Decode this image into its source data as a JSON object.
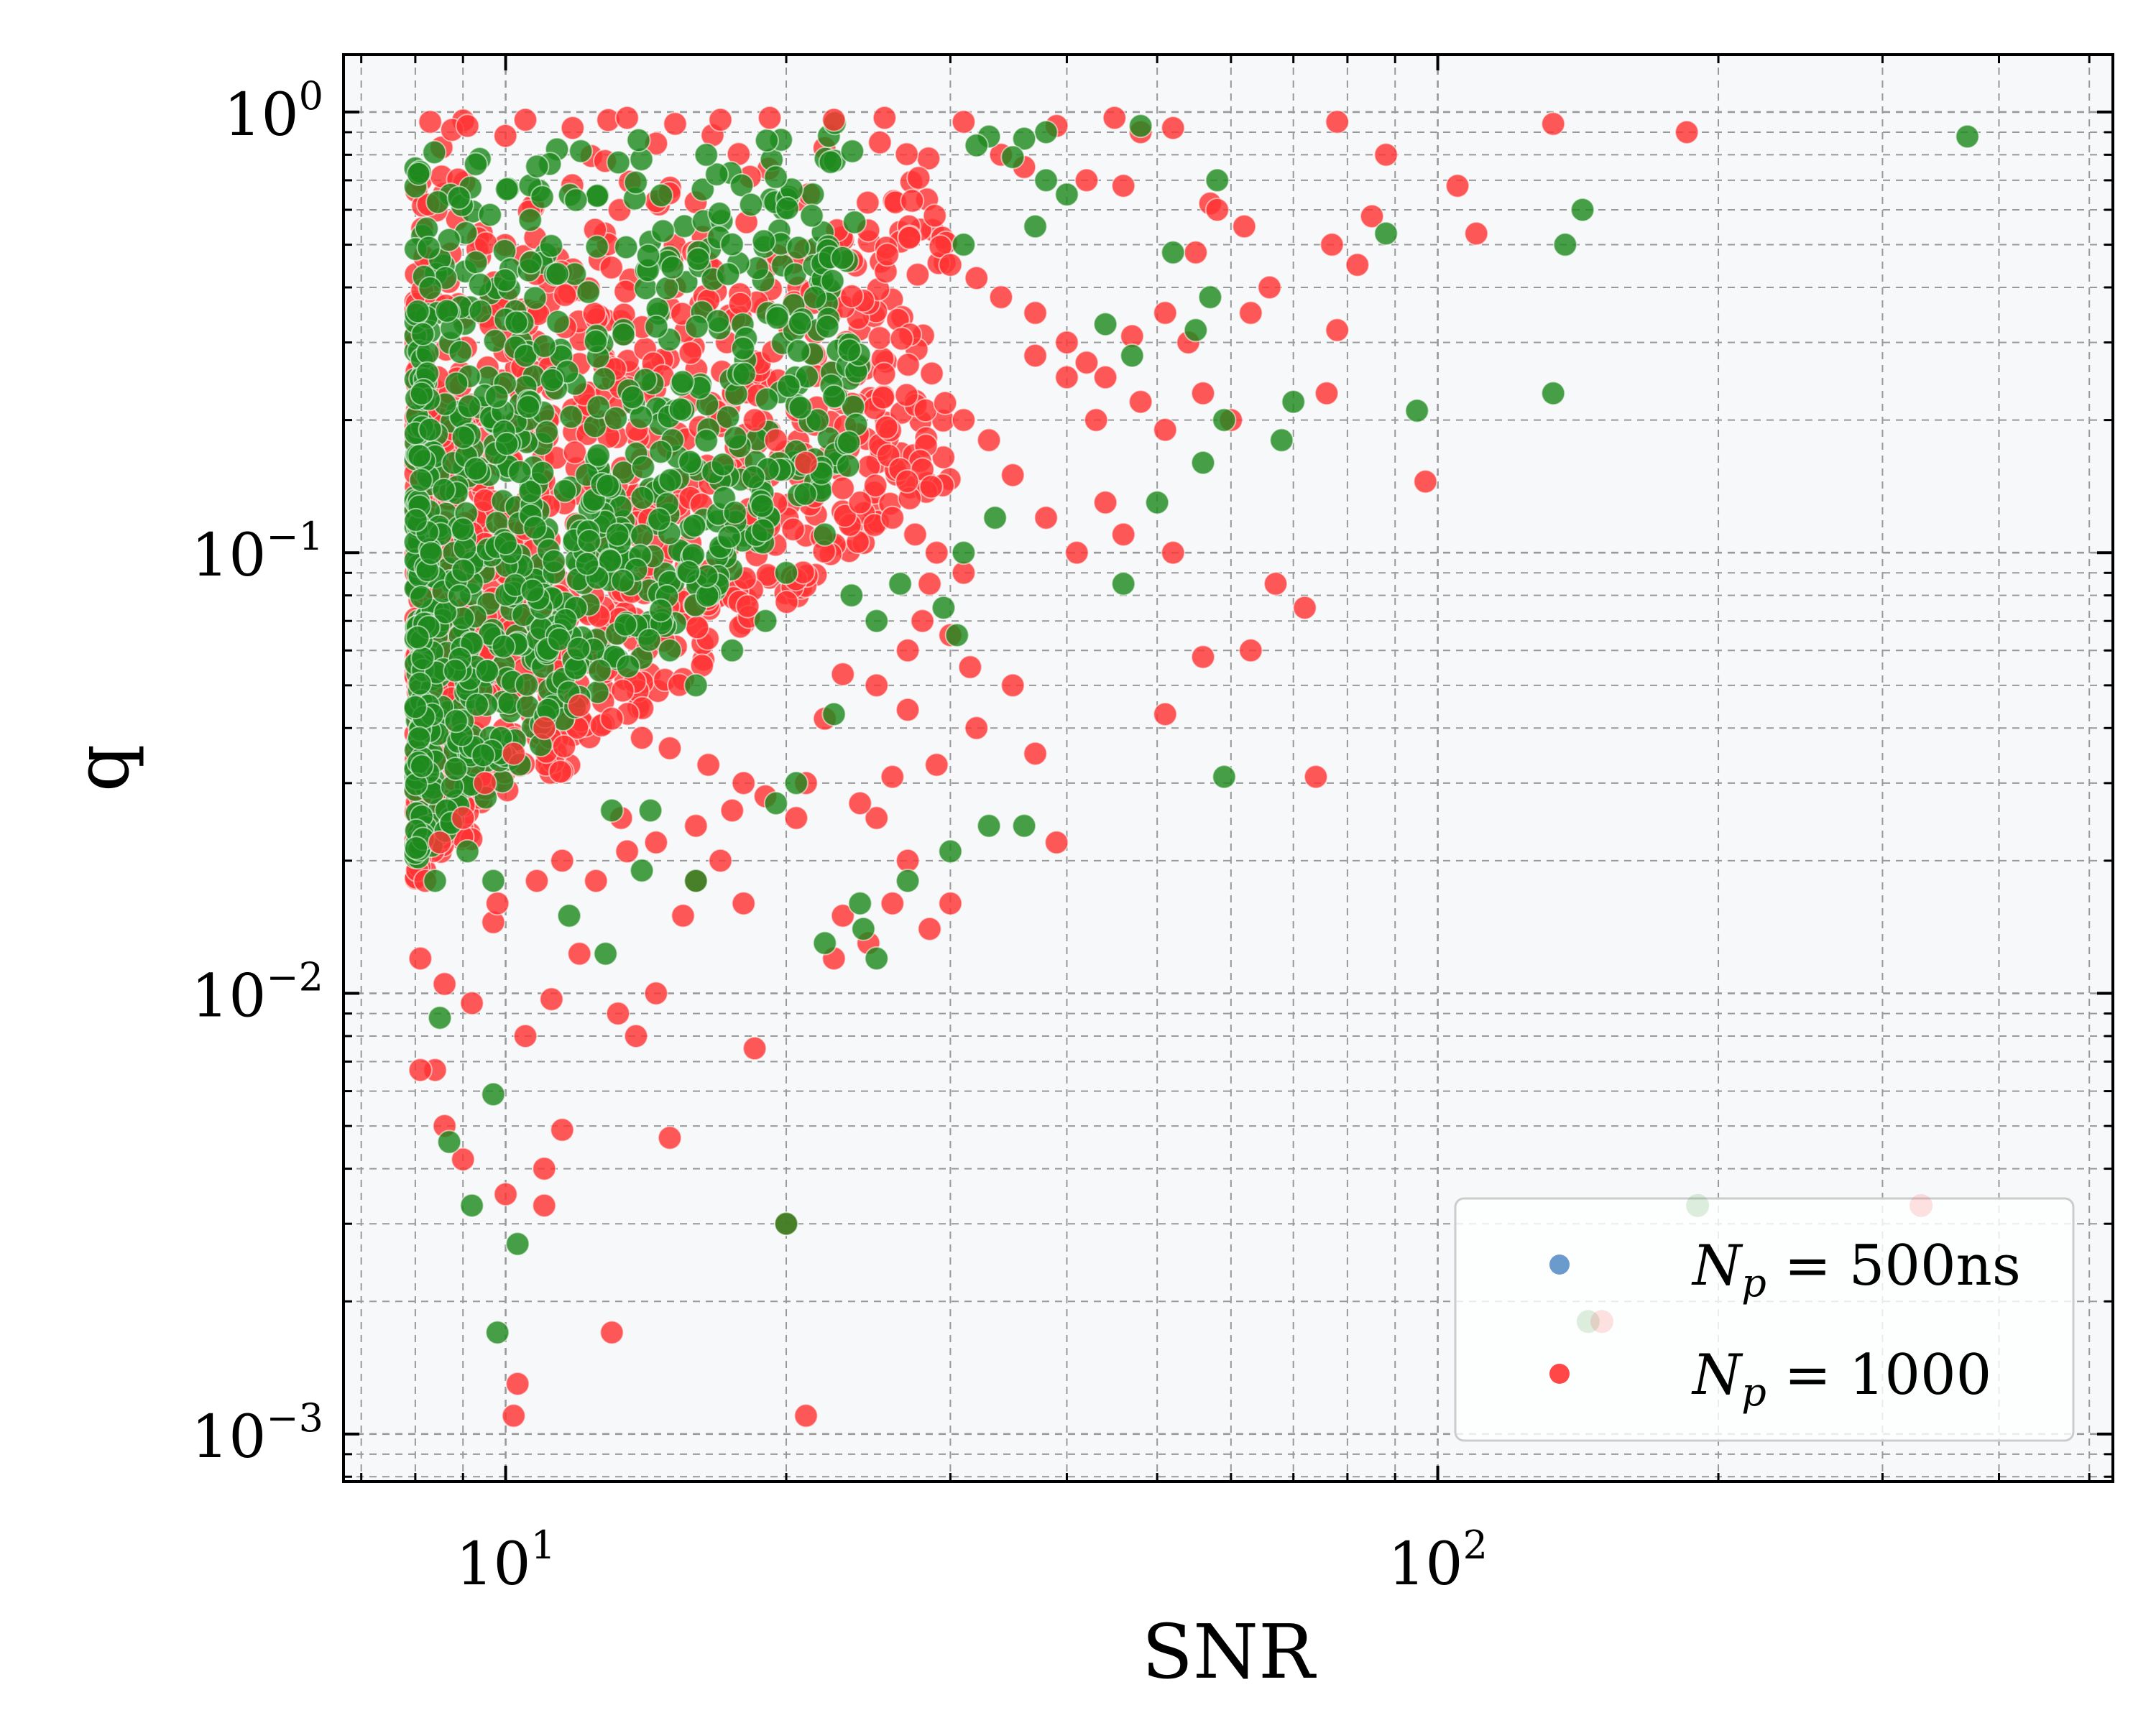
{
  "chart_data": {
    "type": "scatter",
    "xlabel": "SNR",
    "ylabel": "q",
    "xscale": "log",
    "yscale": "log",
    "xlim": [
      6.7,
      530
    ],
    "ylim": [
      0.00078,
      1.35
    ],
    "xticks": [
      {
        "base": "10",
        "exp": "1",
        "value": 10
      },
      {
        "base": "10",
        "exp": "2",
        "value": 100
      }
    ],
    "yticks": [
      {
        "base": "10",
        "exp": "0",
        "value": 1
      },
      {
        "base": "10",
        "exp": "−1",
        "value": 0.1
      },
      {
        "base": "10",
        "exp": "−2",
        "value": 0.01
      },
      {
        "base": "10",
        "exp": "−3",
        "value": 0.001
      }
    ],
    "grid": true,
    "legend_position": "lower-right",
    "colors": {
      "series_blue": "#5b8fc7",
      "series_red": "#ff3333",
      "series_green": "#1f8a1f",
      "plot_background": "#f6f8fa",
      "grid": "#999999"
    },
    "legend": [
      {
        "symbol": "N",
        "subscript": "p",
        "rest": " = 500",
        "unit": "ns",
        "color": "#5b8fc7"
      },
      {
        "symbol": "N",
        "subscript": "p",
        "rest": " = 1000",
        "unit": "",
        "color": "#ff3333"
      }
    ],
    "series": [
      {
        "color": "#5b8fc7",
        "points": []
      },
      {
        "color": "#ff3333",
        "points": [
          [
            8.3,
            0.95
          ],
          [
            9.1,
            0.93
          ],
          [
            10.5,
            0.96
          ],
          [
            11.8,
            0.92
          ],
          [
            13.5,
            0.97
          ],
          [
            15.2,
            0.94
          ],
          [
            17.0,
            0.96
          ],
          [
            19.2,
            0.97
          ],
          [
            22.5,
            0.96
          ],
          [
            25.5,
            0.97
          ],
          [
            31.0,
            0.95
          ],
          [
            39.0,
            0.93
          ],
          [
            45.0,
            0.97
          ],
          [
            48.0,
            0.9
          ],
          [
            52.0,
            0.92
          ],
          [
            78.0,
            0.95
          ],
          [
            133.0,
            0.94
          ],
          [
            185.0,
            0.9
          ],
          [
            34.0,
            0.8
          ],
          [
            36.0,
            0.75
          ],
          [
            42.0,
            0.7
          ],
          [
            46.0,
            0.68
          ],
          [
            57.0,
            0.62
          ],
          [
            58.0,
            0.6
          ],
          [
            85.0,
            0.58
          ],
          [
            88.0,
            0.8
          ],
          [
            105.0,
            0.68
          ],
          [
            110.0,
            0.53
          ],
          [
            62.0,
            0.55
          ],
          [
            55.0,
            0.48
          ],
          [
            77.0,
            0.5
          ],
          [
            82.0,
            0.45
          ],
          [
            66.0,
            0.4
          ],
          [
            78.0,
            0.32
          ],
          [
            63.0,
            0.35
          ],
          [
            30.0,
            0.45
          ],
          [
            32.0,
            0.42
          ],
          [
            34.0,
            0.38
          ],
          [
            37.0,
            0.35
          ],
          [
            40.0,
            0.3
          ],
          [
            42.0,
            0.27
          ],
          [
            44.0,
            0.25
          ],
          [
            48.0,
            0.22
          ],
          [
            51.0,
            0.19
          ],
          [
            56.0,
            0.23
          ],
          [
            60.0,
            0.2
          ],
          [
            54.0,
            0.3
          ],
          [
            51.0,
            0.35
          ],
          [
            47.0,
            0.31
          ],
          [
            43.0,
            0.2
          ],
          [
            40.0,
            0.25
          ],
          [
            37.0,
            0.28
          ],
          [
            31.0,
            0.2
          ],
          [
            33.0,
            0.18
          ],
          [
            35.0,
            0.15
          ],
          [
            38.0,
            0.12
          ],
          [
            41.0,
            0.1
          ],
          [
            44.0,
            0.13
          ],
          [
            46.0,
            0.11
          ],
          [
            52.0,
            0.1
          ],
          [
            67.0,
            0.085
          ],
          [
            76.0,
            0.23
          ],
          [
            97.0,
            0.145
          ],
          [
            72.0,
            0.075
          ],
          [
            63.0,
            0.06
          ],
          [
            56.0,
            0.058
          ],
          [
            51.0,
            0.043
          ],
          [
            74.0,
            0.031
          ],
          [
            35.0,
            0.05
          ],
          [
            37.0,
            0.035
          ],
          [
            32.0,
            0.04
          ],
          [
            29.0,
            0.033
          ],
          [
            27.0,
            0.044
          ],
          [
            25.0,
            0.05
          ],
          [
            23.0,
            0.053
          ],
          [
            22.0,
            0.042
          ],
          [
            21.0,
            0.03
          ],
          [
            20.5,
            0.025
          ],
          [
            25.0,
            0.025
          ],
          [
            27.0,
            0.02
          ],
          [
            24.0,
            0.027
          ],
          [
            26.0,
            0.031
          ],
          [
            39.0,
            0.022
          ],
          [
            23.0,
            0.015
          ],
          [
            24.5,
            0.013
          ],
          [
            26.0,
            0.016
          ],
          [
            28.5,
            0.014
          ],
          [
            30.0,
            0.016
          ],
          [
            22.5,
            0.012
          ],
          [
            20.0,
            0.003
          ],
          [
            21.0,
            0.0011
          ],
          [
            14.5,
            0.01
          ],
          [
            13.2,
            0.009
          ],
          [
            13.8,
            0.008
          ],
          [
            12.0,
            0.0123
          ],
          [
            11.2,
            0.0097
          ],
          [
            10.5,
            0.008
          ],
          [
            8.4,
            0.0067
          ],
          [
            8.1,
            0.0067
          ],
          [
            8.6,
            0.005
          ],
          [
            9.0,
            0.0042
          ],
          [
            10.0,
            0.0035
          ],
          [
            11.0,
            0.004
          ],
          [
            11.0,
            0.0033
          ],
          [
            11.5,
            0.0049
          ],
          [
            13.0,
            0.0017
          ],
          [
            10.3,
            0.0013
          ],
          [
            10.2,
            0.0011
          ],
          [
            8.1,
            0.012
          ],
          [
            8.6,
            0.0105
          ],
          [
            9.2,
            0.0095
          ],
          [
            9.7,
            0.0145
          ],
          [
            15.0,
            0.0047
          ],
          [
            18.5,
            0.0075
          ],
          [
            16.0,
            0.018
          ],
          [
            15.5,
            0.015
          ],
          [
            17.0,
            0.02
          ],
          [
            18.0,
            0.016
          ],
          [
            9.8,
            0.016
          ],
          [
            10.8,
            0.018
          ],
          [
            11.5,
            0.02
          ],
          [
            12.5,
            0.018
          ],
          [
            13.3,
            0.025
          ],
          [
            8.2,
            0.018
          ],
          [
            8.5,
            0.022
          ],
          [
            9.0,
            0.025
          ],
          [
            27.0,
            0.06
          ],
          [
            28.0,
            0.07
          ],
          [
            30.0,
            0.065
          ],
          [
            31.5,
            0.055
          ],
          [
            28.5,
            0.085
          ],
          [
            31.0,
            0.09
          ],
          [
            29.0,
            0.1
          ],
          [
            27.5,
            0.11
          ],
          [
            26.0,
            0.12
          ],
          [
            24.0,
            0.13
          ],
          [
            23.0,
            0.14
          ],
          [
            21.0,
            0.16
          ],
          [
            19.5,
            0.18
          ],
          [
            18.5,
            0.2
          ],
          [
            9.5,
            0.03
          ],
          [
            10.2,
            0.035
          ],
          [
            11.0,
            0.04
          ],
          [
            12.0,
            0.045
          ],
          [
            13.0,
            0.042
          ],
          [
            14.0,
            0.038
          ],
          [
            15.0,
            0.036
          ],
          [
            16.5,
            0.033
          ],
          [
            18.0,
            0.03
          ],
          [
            19.0,
            0.028
          ],
          [
            17.5,
            0.026
          ],
          [
            16.0,
            0.024
          ],
          [
            14.5,
            0.022
          ],
          [
            13.5,
            0.021
          ]
        ]
      },
      {
        "color": "#1f8a1f",
        "points": [
          [
            48.0,
            0.93
          ],
          [
            38.0,
            0.9
          ],
          [
            36.0,
            0.87
          ],
          [
            33.0,
            0.88
          ],
          [
            32.0,
            0.84
          ],
          [
            35.0,
            0.79
          ],
          [
            38.0,
            0.7
          ],
          [
            40.0,
            0.65
          ],
          [
            37.0,
            0.55
          ],
          [
            31.0,
            0.5
          ],
          [
            58.0,
            0.7
          ],
          [
            52.0,
            0.48
          ],
          [
            57.0,
            0.38
          ],
          [
            55.0,
            0.32
          ],
          [
            59.0,
            0.2
          ],
          [
            56.0,
            0.16
          ],
          [
            70.0,
            0.22
          ],
          [
            68.0,
            0.18
          ],
          [
            88.0,
            0.53
          ],
          [
            95.0,
            0.21
          ],
          [
            137.0,
            0.5
          ],
          [
            143.0,
            0.6
          ],
          [
            133.0,
            0.23
          ],
          [
            370.0,
            0.88
          ],
          [
            44.0,
            0.33
          ],
          [
            50.0,
            0.13
          ],
          [
            47.0,
            0.28
          ],
          [
            46.0,
            0.085
          ],
          [
            59.0,
            0.031
          ],
          [
            31.0,
            0.1
          ],
          [
            33.5,
            0.12
          ],
          [
            29.5,
            0.075
          ],
          [
            30.5,
            0.065
          ],
          [
            25.0,
            0.07
          ],
          [
            26.5,
            0.085
          ],
          [
            23.5,
            0.08
          ],
          [
            22.0,
            0.11
          ],
          [
            20.0,
            0.09
          ],
          [
            19.0,
            0.07
          ],
          [
            17.5,
            0.06
          ],
          [
            16.0,
            0.05
          ],
          [
            15.0,
            0.06
          ],
          [
            33.0,
            0.024
          ],
          [
            36.0,
            0.024
          ],
          [
            30.0,
            0.021
          ],
          [
            27.0,
            0.018
          ],
          [
            24.0,
            0.016
          ],
          [
            24.2,
            0.014
          ],
          [
            25.0,
            0.012
          ],
          [
            22.0,
            0.013
          ],
          [
            22.5,
            0.043
          ],
          [
            20.5,
            0.03
          ],
          [
            19.5,
            0.027
          ],
          [
            20.0,
            0.003
          ],
          [
            8.5,
            0.0088
          ],
          [
            8.7,
            0.0046
          ],
          [
            9.2,
            0.0033
          ],
          [
            9.7,
            0.0059
          ],
          [
            10.3,
            0.0027
          ],
          [
            9.8,
            0.0017
          ],
          [
            8.4,
            0.018
          ],
          [
            9.1,
            0.021
          ],
          [
            9.7,
            0.018
          ],
          [
            11.7,
            0.015
          ],
          [
            12.8,
            0.0123
          ],
          [
            14.0,
            0.019
          ],
          [
            16.0,
            0.018
          ],
          [
            13.0,
            0.026
          ],
          [
            14.3,
            0.026
          ]
        ]
      }
    ],
    "dense_region": {
      "red": {
        "x_range": [
          8.0,
          30.0
        ],
        "q_min_at_x_start": 0.018,
        "q_max": 1.0
      },
      "green": {
        "x_range": [
          8.0,
          24.0
        ],
        "q_min_at_x_start": 0.02,
        "q_max": 1.0
      }
    },
    "faint_overlay_points": [
      {
        "x": 145,
        "y": 0.0018,
        "color": "#1f8a1f"
      },
      {
        "x": 150,
        "y": 0.0018,
        "color": "#ff3333"
      },
      {
        "x": 190,
        "y": 0.0033,
        "color": "#1f8a1f"
      },
      {
        "x": 330,
        "y": 0.0033,
        "color": "#ff3333"
      }
    ]
  }
}
